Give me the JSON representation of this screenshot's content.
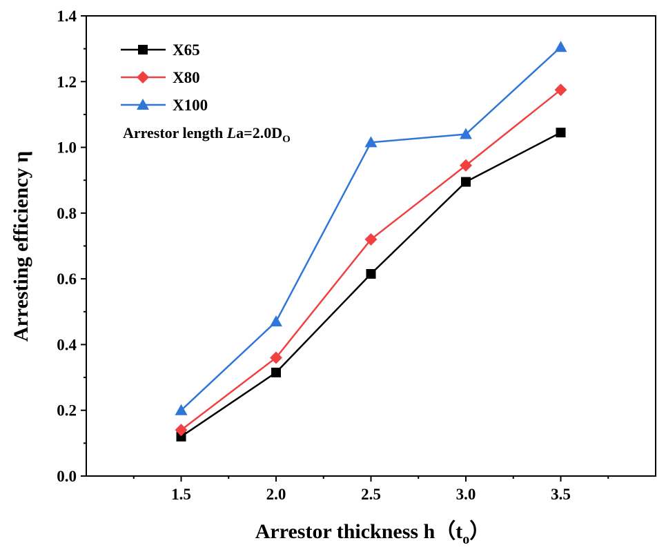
{
  "chart_data": {
    "type": "line",
    "title": "",
    "xlabel": "Arrestor thickness h",
    "xlabel_paren_open": "（",
    "xlabel_unit_base": "t",
    "xlabel_unit_sub": "o",
    "xlabel_paren_close": "）",
    "ylabel": "Arresting efficiency η",
    "xlim": [
      1.0,
      4.0
    ],
    "ylim": [
      0.0,
      1.4
    ],
    "x": [
      1.5,
      2.0,
      2.5,
      3.0,
      3.5
    ],
    "xticks": [
      "1.5",
      "2.0",
      "2.5",
      "3.0",
      "3.5"
    ],
    "yticks": [
      "0.0",
      "0.2",
      "0.4",
      "0.6",
      "0.8",
      "1.0",
      "1.2",
      "1.4"
    ],
    "grid": false,
    "legend_position": "top-left",
    "series": [
      {
        "name": "X65",
        "values": [
          0.12,
          0.315,
          0.615,
          0.895,
          1.045
        ],
        "color": "#000000",
        "marker": "square"
      },
      {
        "name": "X80",
        "values": [
          0.14,
          0.36,
          0.72,
          0.945,
          1.175
        ],
        "color": "#f04040",
        "marker": "diamond"
      },
      {
        "name": "X100",
        "values": [
          0.2,
          0.47,
          1.015,
          1.04,
          1.305
        ],
        "color": "#2f76d8",
        "marker": "triangle"
      }
    ],
    "annotation": {
      "prefix": "Arrestor length ",
      "italic": "L",
      "mid": "a=2.0D",
      "sub": "O"
    }
  }
}
